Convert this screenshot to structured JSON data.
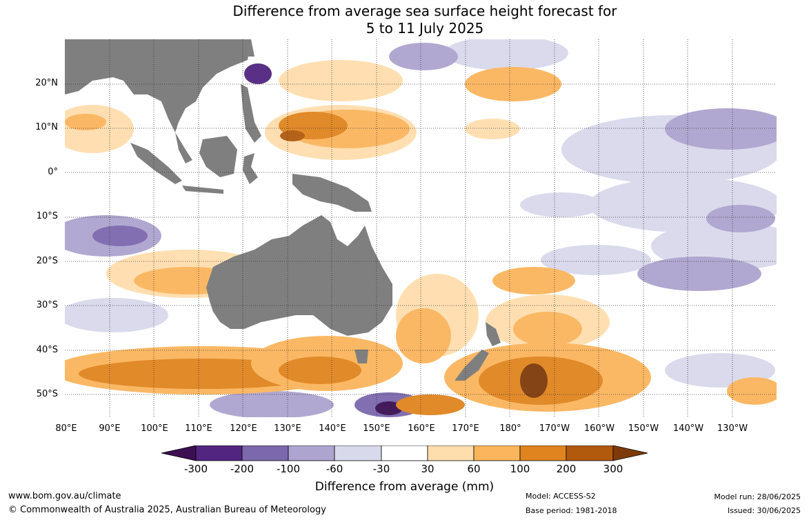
{
  "title": {
    "line1": "Difference from average sea surface height forecast for",
    "line2": "5 to 11 July 2025"
  },
  "map": {
    "lon_labels": [
      "80°E",
      "90°E",
      "100°E",
      "110°E",
      "120°E",
      "130°E",
      "140°E",
      "150°E",
      "160°E",
      "170°E",
      "180°",
      "170°W",
      "160°W",
      "150°W",
      "140°W",
      "130°W"
    ],
    "lat_labels": [
      "20°N",
      "10°N",
      "0°",
      "10°S",
      "20°S",
      "30°S",
      "40°S",
      "50°S"
    ],
    "land_color": "#7f7f7f",
    "gridline_style": "dotted"
  },
  "colorbar": {
    "title": "Difference from average (mm)",
    "tick_labels": [
      "-300",
      "-200",
      "-100",
      "-60",
      "-30",
      "30",
      "60",
      "100",
      "200",
      "300"
    ],
    "colors": [
      "#3b0f52",
      "#512580",
      "#7b68ad",
      "#ada4cf",
      "#d9d9ec",
      "#ffffff",
      "#ffdeae",
      "#fbb55c",
      "#e0841f",
      "#b15a0d",
      "#7f3a0a"
    ]
  },
  "footer": {
    "website": "www.bom.gov.au/climate",
    "copyright": "© Commonwealth of Australia 2025, Australian Bureau of Meteorology",
    "model": "Model: ACCESS-S2",
    "base_period": "Base period: 1981-2018",
    "model_run": "Model run: 28/06/2025",
    "issued": "Issued: 30/06/2025"
  }
}
